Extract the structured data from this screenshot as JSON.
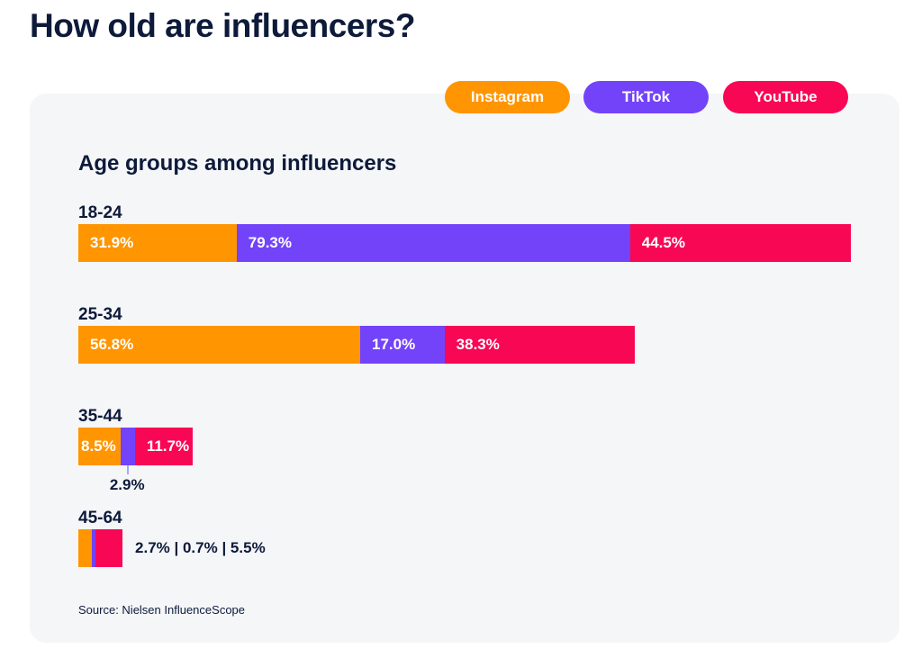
{
  "page": {
    "title": "How old are influencers?",
    "source": "Source: Nielsen InfluenceScope"
  },
  "chart_data": {
    "type": "bar",
    "stacked": true,
    "orientation": "horizontal",
    "title": "Age groups among influencers",
    "categories": [
      "18-24",
      "25-34",
      "35-44",
      "45-64"
    ],
    "series": [
      {
        "name": "Instagram",
        "color": "#ff9500",
        "values": [
          31.9,
          56.8,
          8.5,
          2.7
        ],
        "labels": [
          "31.9%",
          "56.8%",
          "8.5%",
          ""
        ]
      },
      {
        "name": "TikTok",
        "color": "#7343fa",
        "values": [
          79.3,
          17.0,
          2.9,
          0.7
        ],
        "labels": [
          "79.3%",
          "17.0%",
          "",
          ""
        ]
      },
      {
        "name": "YouTube",
        "color": "#f80754",
        "values": [
          44.5,
          38.3,
          11.7,
          5.5
        ],
        "labels": [
          "44.5%",
          "38.3%",
          "11.7%",
          ""
        ]
      }
    ],
    "external_labels": {
      "35-44": "2.9%",
      "45-64": "2.7% | 0.7% | 5.5%"
    },
    "legend_position": "top-right",
    "xmax": 155.7
  }
}
